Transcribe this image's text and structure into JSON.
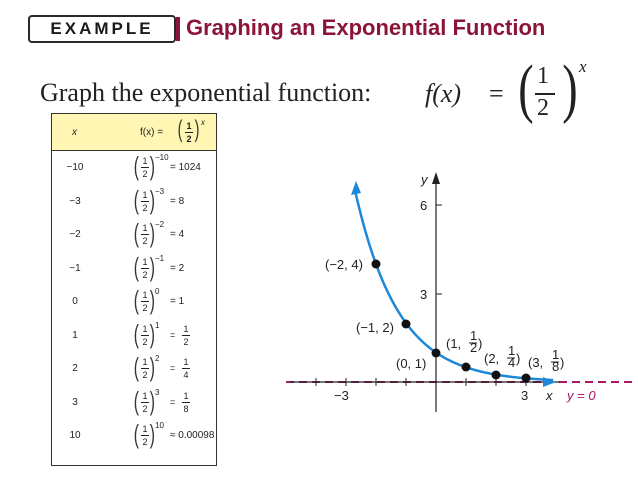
{
  "header": {
    "badge": "EXAMPLE",
    "title": "Graphing an Exponential Function"
  },
  "prompt": {
    "text": "Graph the exponential function:",
    "formula_lhs": "f(x)",
    "formula_eq": "=",
    "numerator": "1",
    "denominator": "2",
    "exponent": "x"
  },
  "table": {
    "header_x": "x",
    "header_f_prefix": "f(x) =",
    "header_f_num": "1",
    "header_f_den": "2",
    "header_f_exp": "x",
    "rows": [
      {
        "x": "−10",
        "exp": "−10",
        "result": "= 1024"
      },
      {
        "x": "−3",
        "exp": "−3",
        "result": "= 8"
      },
      {
        "x": "−2",
        "exp": "−2",
        "result": "= 4"
      },
      {
        "x": "−1",
        "exp": "−1",
        "result": "= 2"
      },
      {
        "x": "0",
        "exp": "0",
        "result": "= 1"
      },
      {
        "x": "1",
        "exp": "1",
        "result_eq": "=",
        "result_num": "1",
        "result_den": "2"
      },
      {
        "x": "2",
        "exp": "2",
        "result_eq": "=",
        "result_num": "1",
        "result_den": "4"
      },
      {
        "x": "3",
        "exp": "3",
        "result_eq": "=",
        "result_num": "1",
        "result_den": "8"
      },
      {
        "x": "10",
        "exp": "10",
        "result": "≈ 0.00098"
      }
    ]
  },
  "graph": {
    "y_axis_label": "y",
    "x_axis_label": "x",
    "asymptote_label": "y = 0",
    "tick_labels": {
      "y6": "6",
      "y3": "3",
      "xneg3": "−3",
      "x3": "3"
    },
    "points": [
      {
        "label": "(−2, 4)"
      },
      {
        "label": "(−1, 2)"
      },
      {
        "label": "(0, 1)"
      },
      {
        "label_prefix": "(1, ",
        "num": "1",
        "den": "2",
        "suffix": ")"
      },
      {
        "label_prefix": "(2, ",
        "num": "1",
        "den": "4",
        "suffix": ")"
      },
      {
        "label_prefix": "(3, ",
        "num": "1",
        "den": "8",
        "suffix": ")"
      }
    ],
    "colors": {
      "curve": "#1e88d8",
      "asymptote": "#a8176a",
      "header": "#8a1538",
      "table_header_bg": "#fff6b3"
    }
  }
}
